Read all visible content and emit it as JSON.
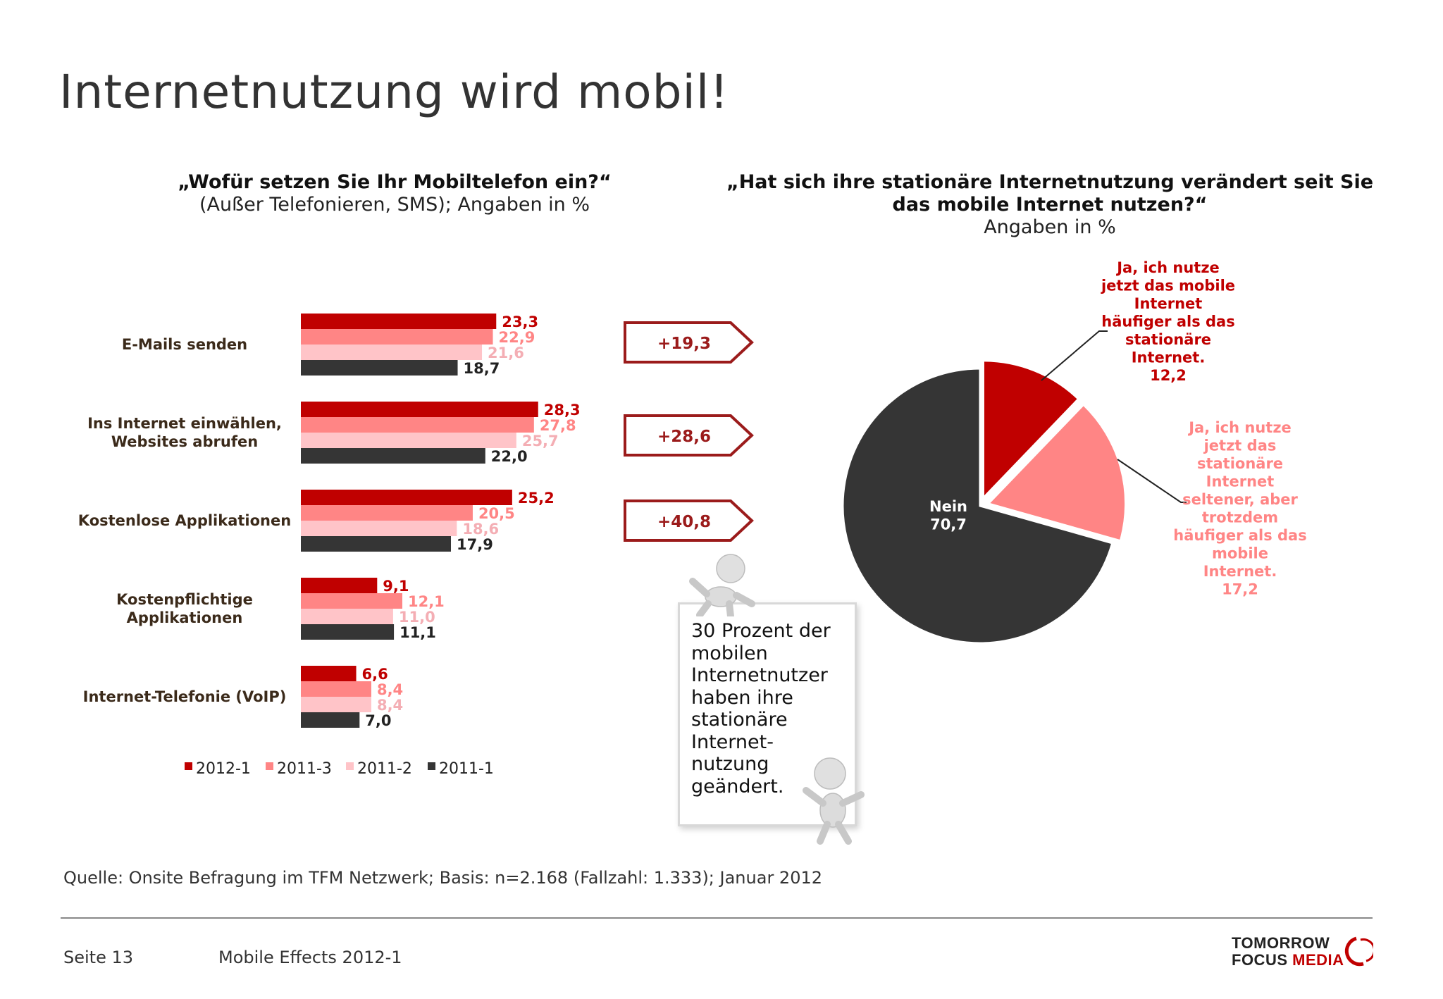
{
  "title": "Internetnutzung wird mobil!",
  "bar_chart": {
    "question": "„Wofür setzen Sie Ihr Mobiltelefon ein?“",
    "subtitle": "(Außer Telefonieren, SMS); Angaben in %"
  },
  "pie_chart": {
    "question_line1": "„Hat sich ihre stationäre Internetnutzung verändert seit Sie",
    "question_line2": "das mobile Internet nutzen?“",
    "subtitle": "Angaben in %"
  },
  "growth_badges": [
    "+19,3",
    "+28,6",
    "+40,8"
  ],
  "note_text": "30 Prozent der\nmobilen\nInternetnutzer\nhaben ihre\nstationäre\nInternet-\nnutzung\ngeändert.",
  "source": "Quelle: Onsite Befragung im TFM Netzwerk; Basis: n=2.168 (Fallzahl: 1.333); Januar 2012",
  "footer": {
    "page": "Seite 13",
    "document": "Mobile Effects 2012-1"
  },
  "logo": {
    "line1": "TOMORROW",
    "line2a": "FOCUS",
    "line2b": "MEDIA"
  },
  "colors": {
    "s2012_1": "#c00000",
    "s2011_3": "#ff8585",
    "s2011_2": "#ffc4c8",
    "s2011_1": "#353535",
    "label_dark": "#3b2a1a",
    "badge_border": "#9b1b1b"
  },
  "chart_data": [
    {
      "type": "bar",
      "orientation": "horizontal",
      "categories": [
        "E-Mails senden",
        "Ins Internet einwählen, Websites abrufen",
        "Kostenlose Applikationen",
        "Kostenpflichtige Applikationen",
        "Internet-Telefonie (VoIP)"
      ],
      "category_lines": [
        [
          "E-Mails senden"
        ],
        [
          "Ins Internet einwählen,",
          "Websites abrufen"
        ],
        [
          "Kostenlose Applikationen"
        ],
        [
          "Kostenpflichtige",
          "Applikationen"
        ],
        [
          "Internet-Telefonie (VoIP)"
        ]
      ],
      "series": [
        {
          "name": "2012-1",
          "values": [
            23.3,
            28.3,
            25.2,
            9.1,
            6.6
          ],
          "labels": [
            "23,3",
            "28,3",
            "25,2",
            "9,1",
            "6,6"
          ]
        },
        {
          "name": "2011-3",
          "values": [
            22.9,
            27.8,
            20.5,
            12.1,
            8.4
          ],
          "labels": [
            "22,9",
            "27,8",
            "20,5",
            "12,1",
            "8,4"
          ]
        },
        {
          "name": "2011-2",
          "values": [
            21.6,
            25.7,
            18.6,
            11.0,
            8.4
          ],
          "labels": [
            "21,6",
            "25,7",
            "18,6",
            "11,0",
            "8,4"
          ]
        },
        {
          "name": "2011-1",
          "values": [
            18.7,
            22.0,
            17.9,
            11.1,
            7.0
          ],
          "labels": [
            "18,7",
            "22,0",
            "17,9",
            "11,1",
            "7,0"
          ]
        }
      ],
      "legend_position": "bottom"
    },
    {
      "type": "pie",
      "slices": [
        {
          "label_lines": [
            "Ja, ich nutze",
            "jetzt das mobile",
            "Internet",
            "häufiger als das",
            "stationäre",
            "Internet."
          ],
          "value": 12.2,
          "value_label": "12,2"
        },
        {
          "label_lines": [
            "Ja, ich nutze",
            "jetzt das",
            "stationäre",
            "Internet",
            "seltener, aber",
            "trotzdem",
            "häufiger als das",
            "mobile",
            "Internet."
          ],
          "value": 17.2,
          "value_label": "17,2"
        },
        {
          "label_lines": [
            "Nein"
          ],
          "value": 70.7,
          "value_label": "70,7"
        }
      ]
    }
  ]
}
